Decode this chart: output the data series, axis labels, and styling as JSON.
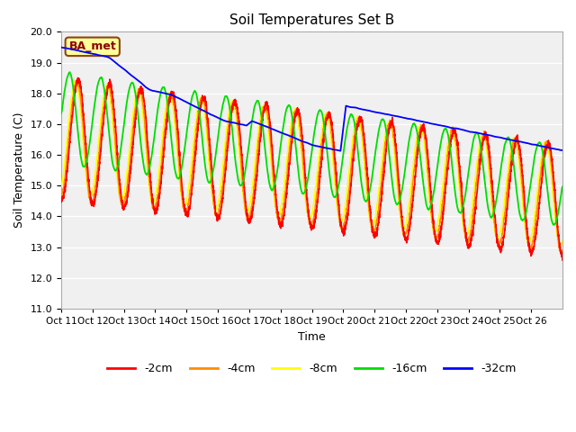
{
  "title": "Soil Temperatures Set B",
  "xlabel": "Time",
  "ylabel": "Soil Temperature (C)",
  "ylim": [
    11.0,
    20.0
  ],
  "yticks": [
    11.0,
    12.0,
    13.0,
    14.0,
    15.0,
    16.0,
    17.0,
    18.0,
    19.0,
    20.0
  ],
  "xtick_labels": [
    "Oct 11",
    "Oct 12",
    "Oct 13",
    "Oct 14",
    "Oct 15",
    "Oct 16",
    "Oct 17",
    "Oct 18",
    "Oct 19",
    "Oct 20",
    "Oct 21",
    "Oct 22",
    "Oct 23",
    "Oct 24",
    "Oct 25",
    "Oct 26"
  ],
  "colors": {
    "-2cm": "#ff0000",
    "-4cm": "#ff8c00",
    "-8cm": "#ffff00",
    "-16cm": "#00dd00",
    "-32cm": "#0000ff"
  },
  "legend_labels": [
    "-2cm",
    "-4cm",
    "-8cm",
    "-16cm",
    "-32cm"
  ],
  "annotation_text": "BA_met",
  "annotation_bg": "#ffff99",
  "annotation_border": "#8B4513",
  "bg_color": "#ffffff",
  "plot_bg": "#f0f0f0",
  "grid_color": "#d8d8d8"
}
